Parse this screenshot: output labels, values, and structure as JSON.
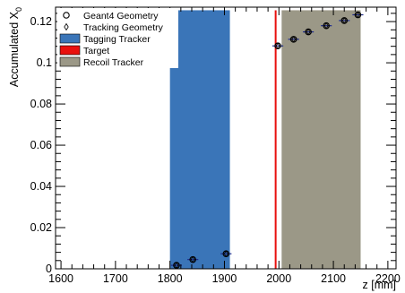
{
  "chart_data": {
    "type": "scatter",
    "xlabel": "z [mm]",
    "ylabel": "Accumulated X",
    "ylabel_sub": "0",
    "xlim": [
      1590,
      2215
    ],
    "ylim": [
      0,
      0.127
    ],
    "x_ticks": [
      "1600",
      "1700",
      "1800",
      "1900",
      "2000",
      "2100",
      "2200"
    ],
    "y_ticks": [
      "0",
      "0.02",
      "0.04",
      "0.06",
      "0.08",
      "0.1",
      "0.12"
    ],
    "regions": [
      {
        "name": "Tagging Tracker",
        "x0": 1800,
        "x1": 1910,
        "y_top": 0.1255,
        "color": "#3a75b8"
      },
      {
        "name": "Recoil Tracker",
        "x0": 2005,
        "x1": 2150,
        "y_top": 0.1255,
        "color": "#9b9887"
      }
    ],
    "target": {
      "name": "Target",
      "x": 1994,
      "y_top": 0.1255,
      "color": "#e8100e"
    },
    "series": [
      {
        "name": "Geant4 Geometry",
        "marker": "circle",
        "points": [
          {
            "x": 1812,
            "y": 0.0017,
            "xerr": 10
          },
          {
            "x": 1842,
            "y": 0.0045,
            "xerr": 10
          },
          {
            "x": 1903,
            "y": 0.0073,
            "xerr": 10
          },
          {
            "x": 1998,
            "y": 0.1082,
            "xerr": 10
          },
          {
            "x": 2027,
            "y": 0.1114,
            "xerr": 10
          },
          {
            "x": 2054,
            "y": 0.115,
            "xerr": 10
          },
          {
            "x": 2087,
            "y": 0.118,
            "xerr": 10
          },
          {
            "x": 2120,
            "y": 0.1205,
            "xerr": 10
          },
          {
            "x": 2145,
            "y": 0.1233,
            "xerr": 10
          }
        ]
      },
      {
        "name": "Tracking Geometry",
        "marker": "diamond",
        "points": [
          {
            "x": 1812,
            "y": 0.0017
          },
          {
            "x": 1842,
            "y": 0.0045
          },
          {
            "x": 1903,
            "y": 0.0073
          },
          {
            "x": 1998,
            "y": 0.1082
          },
          {
            "x": 2027,
            "y": 0.1114
          },
          {
            "x": 2054,
            "y": 0.115
          },
          {
            "x": 2087,
            "y": 0.118
          },
          {
            "x": 2120,
            "y": 0.1205
          },
          {
            "x": 2145,
            "y": 0.1233
          }
        ]
      }
    ],
    "legend": [
      {
        "label": "Geant4 Geometry",
        "kind": "circle"
      },
      {
        "label": "Tracking Geometry",
        "kind": "diamond"
      },
      {
        "label": "Tagging Tracker",
        "kind": "box",
        "color": "#3a75b8"
      },
      {
        "label": "Target",
        "kind": "box",
        "color": "#e8100e"
      },
      {
        "label": "Recoil Tracker",
        "kind": "box",
        "color": "#9b9887"
      }
    ],
    "legend_position": "top-left",
    "grid": false
  }
}
